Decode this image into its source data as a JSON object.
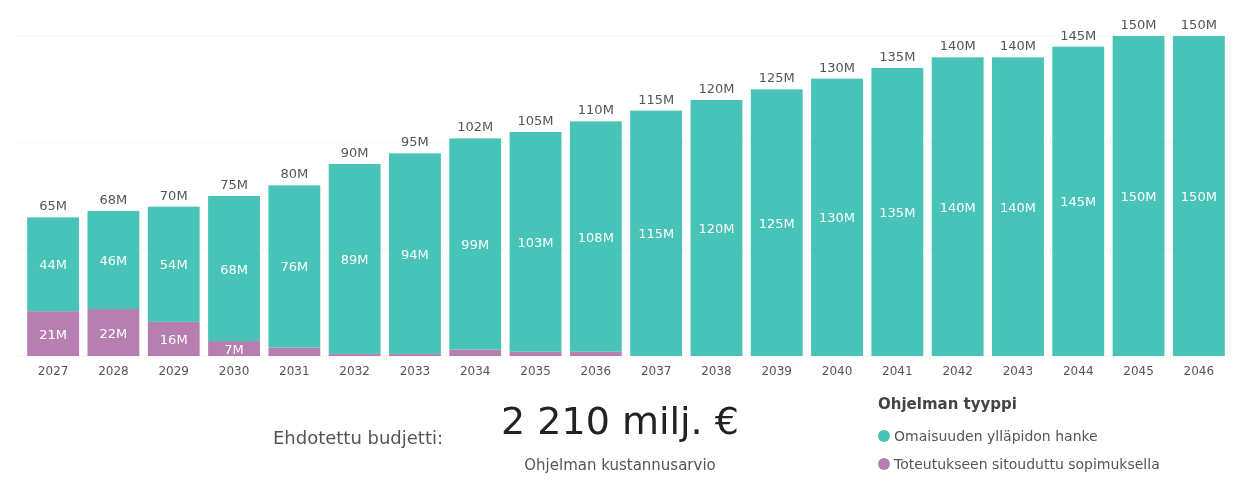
{
  "chart_data": {
    "type": "bar",
    "stacked": true,
    "categories": [
      "2027",
      "2028",
      "2029",
      "2030",
      "2031",
      "2032",
      "2033",
      "2034",
      "2035",
      "2036",
      "2037",
      "2038",
      "2039",
      "2040",
      "2041",
      "2042",
      "2043",
      "2044",
      "2045",
      "2046"
    ],
    "series": [
      {
        "name": "Toteutukseen sitouduttu sopimuksella",
        "color": "#b67fb0",
        "values": [
          21,
          22,
          16,
          7,
          4,
          1,
          1,
          3,
          2,
          2,
          0,
          0,
          0,
          0,
          0,
          0,
          0,
          0,
          0,
          0
        ],
        "value_labels": [
          "21M",
          "22M",
          "16M",
          "7M",
          null,
          null,
          null,
          null,
          null,
          null,
          null,
          null,
          null,
          null,
          null,
          null,
          null,
          null,
          null,
          null
        ]
      },
      {
        "name": "Omaisuuden ylläpidon hanke",
        "color": "#47c3b7",
        "values": [
          44,
          46,
          54,
          68,
          76,
          89,
          94,
          99,
          103,
          108,
          115,
          120,
          125,
          130,
          135,
          140,
          140,
          145,
          150,
          150
        ],
        "value_labels": [
          "44M",
          "46M",
          "54M",
          "68M",
          "76M",
          "89M",
          "94M",
          "99M",
          "103M",
          "108M",
          "115M",
          "120M",
          "125M",
          "130M",
          "135M",
          "140M",
          "140M",
          "145M",
          "150M",
          "150M"
        ]
      }
    ],
    "totals": [
      "65M",
      "68M",
      "70M",
      "75M",
      "80M",
      "90M",
      "95M",
      "102M",
      "105M",
      "110M",
      "115M",
      "120M",
      "125M",
      "130M",
      "135M",
      "140M",
      "140M",
      "145M",
      "150M",
      "150M"
    ],
    "ylim": [
      0,
      150
    ],
    "yticks": [
      {
        "value": 0,
        "label": null
      },
      {
        "value": 50,
        "label": null
      },
      {
        "value": 100,
        "label": null
      },
      {
        "value": 150,
        "label": null
      }
    ],
    "tick_labels": "x",
    "grid": "y",
    "legend": "bottom right",
    "legend_title": "Ohjelman tyyppi",
    "annotations": [
      "Ehdotettu budjetti:",
      "2 210 milj. €",
      "Ohjelman kustannusarvio"
    ]
  }
}
